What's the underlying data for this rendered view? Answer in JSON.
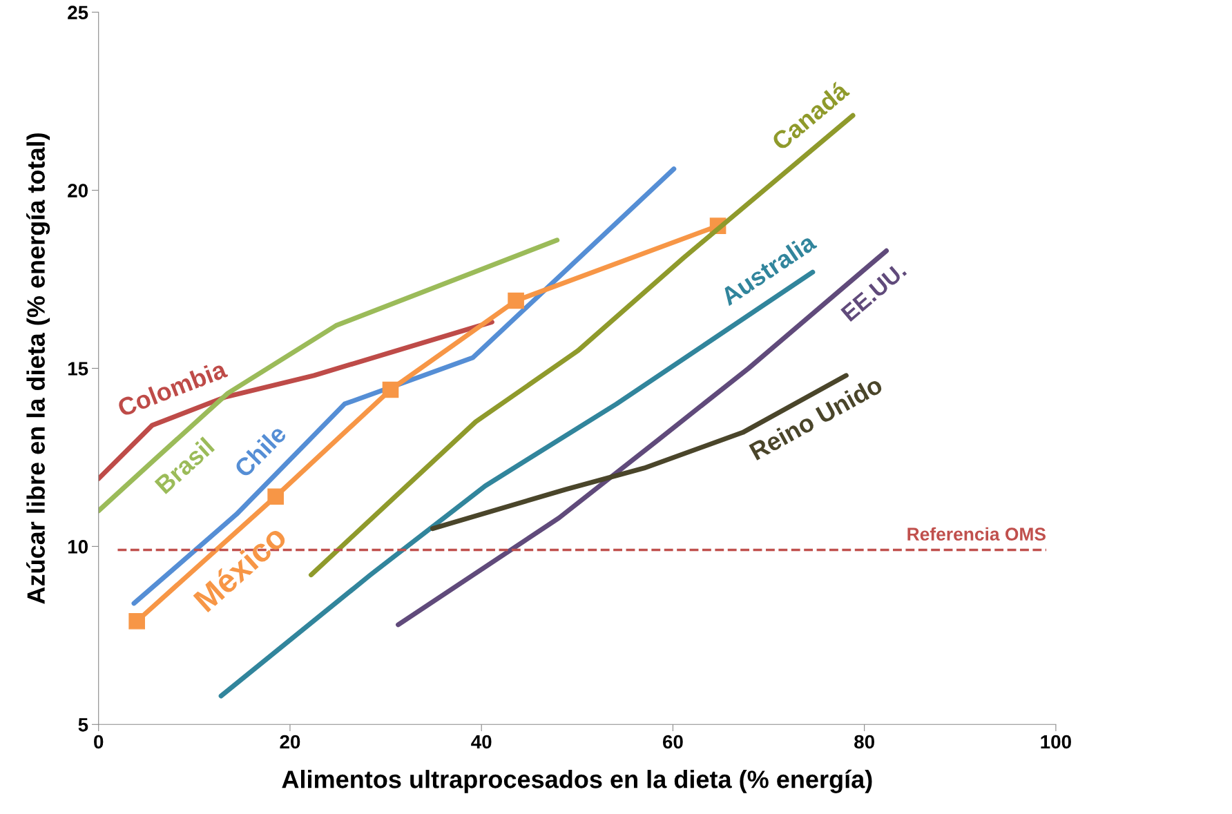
{
  "chart_data": {
    "type": "line",
    "xlabel": "Alimentos ultraprocesados en la dieta (% energía)",
    "ylabel": "Azúcar libre en la dieta (% energía total)",
    "xlim": [
      0,
      100
    ],
    "xticks": [
      0,
      20,
      40,
      60,
      80,
      100
    ],
    "ylim": [
      5,
      25
    ],
    "yticks": [
      5,
      10,
      15,
      20,
      25
    ],
    "grid": false,
    "legend": false,
    "marker": "none",
    "line_style": "solid",
    "series": [
      {
        "name": "Colombia",
        "color": "#be4b48",
        "x": [
          0,
          5.6,
          13.3,
          22.5,
          41.1
        ],
        "values": [
          11.9,
          13.4,
          14.2,
          14.8,
          16.3
        ]
      },
      {
        "name": "Brasil",
        "color": "#9bbb59",
        "x": [
          0,
          5.7,
          13.5,
          24.8,
          47.9
        ],
        "values": [
          11.0,
          12.4,
          14.3,
          16.2,
          18.6
        ]
      },
      {
        "name": "Chile",
        "color": "#558ed5",
        "x": [
          3.7,
          14.4,
          25.7,
          39.1,
          60.1
        ],
        "values": [
          8.4,
          10.9,
          14.0,
          15.3,
          20.6
        ]
      },
      {
        "name": "México",
        "color": "#f79646",
        "marker": "square",
        "x": [
          4.0,
          18.5,
          30.5,
          43.6,
          64.7
        ],
        "values": [
          7.9,
          11.4,
          14.4,
          16.9,
          19.0
        ]
      },
      {
        "name": "Canadá",
        "color": "#8f9a2b",
        "x": [
          22.2,
          39.4,
          50.1,
          61.1,
          78.8
        ],
        "values": [
          9.2,
          13.5,
          15.5,
          18.1,
          22.1
        ]
      },
      {
        "name": "Australia",
        "color": "#31859c",
        "x": [
          12.8,
          28.4,
          40.4,
          54.1,
          74.6
        ],
        "values": [
          5.8,
          9.2,
          11.7,
          14.0,
          17.7
        ]
      },
      {
        "name": "EE.UU.",
        "color": "#604a7b",
        "x": [
          31.3,
          48.1,
          58.5,
          67.9,
          82.3
        ],
        "values": [
          7.8,
          10.8,
          13.0,
          15.0,
          18.3
        ]
      },
      {
        "name": "Reino Unido",
        "color": "#4a452a",
        "x": [
          34.9,
          48.8,
          57.0,
          67.3,
          78.1
        ],
        "values": [
          10.5,
          11.6,
          12.2,
          13.2,
          14.8
        ]
      }
    ],
    "ref_lines": [
      {
        "axis": "y",
        "value": 9.9,
        "label": "Referencia OMS",
        "color": "#c0504d",
        "line_style": "dashed"
      }
    ]
  }
}
